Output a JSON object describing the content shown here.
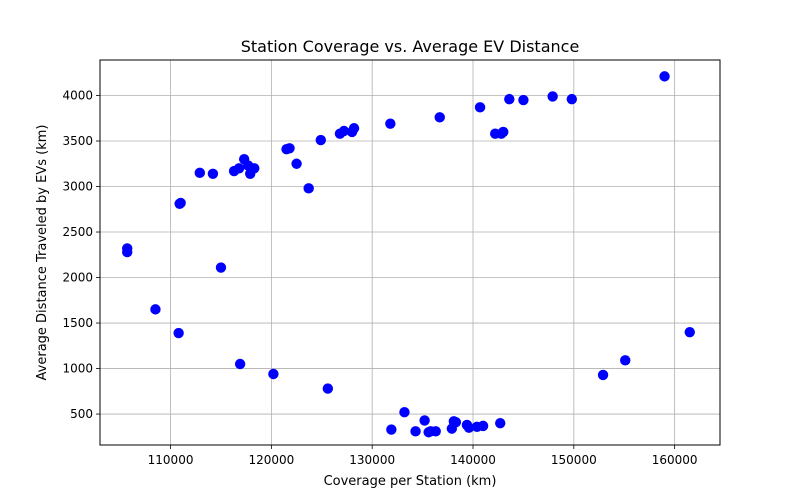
{
  "chart_data": {
    "type": "scatter",
    "title": "Station Coverage vs. Average EV Distance",
    "xlabel": "Coverage per Station (km)",
    "ylabel": "Average Distance Traveled by EVs (km)",
    "xlim": [
      103000,
      164500
    ],
    "ylim": [
      160,
      4390
    ],
    "x_ticks": [
      110000,
      120000,
      130000,
      140000,
      150000,
      160000
    ],
    "x_tick_labels": [
      "110000",
      "120000",
      "130000",
      "140000",
      "150000",
      "160000"
    ],
    "y_ticks": [
      500,
      1000,
      1500,
      2000,
      2500,
      3000,
      3500,
      4000
    ],
    "y_tick_labels": [
      "500",
      "1000",
      "1500",
      "2000",
      "2500",
      "3000",
      "3500",
      "4000"
    ],
    "grid": true,
    "marker_color": "#0000ff",
    "points": [
      {
        "x": 105700,
        "y": 2320
      },
      {
        "x": 105700,
        "y": 2280
      },
      {
        "x": 108500,
        "y": 1650
      },
      {
        "x": 110800,
        "y": 1390
      },
      {
        "x": 110900,
        "y": 2810
      },
      {
        "x": 111000,
        "y": 2820
      },
      {
        "x": 112900,
        "y": 3150
      },
      {
        "x": 114200,
        "y": 3140
      },
      {
        "x": 115000,
        "y": 2110
      },
      {
        "x": 116300,
        "y": 3170
      },
      {
        "x": 116800,
        "y": 3200
      },
      {
        "x": 116900,
        "y": 1050
      },
      {
        "x": 117300,
        "y": 3300
      },
      {
        "x": 117700,
        "y": 3230
      },
      {
        "x": 117900,
        "y": 3140
      },
      {
        "x": 118300,
        "y": 3200
      },
      {
        "x": 120200,
        "y": 940
      },
      {
        "x": 121500,
        "y": 3410
      },
      {
        "x": 121800,
        "y": 3420
      },
      {
        "x": 122500,
        "y": 3250
      },
      {
        "x": 123700,
        "y": 2980
      },
      {
        "x": 124900,
        "y": 3510
      },
      {
        "x": 125600,
        "y": 780
      },
      {
        "x": 126800,
        "y": 3580
      },
      {
        "x": 127200,
        "y": 3610
      },
      {
        "x": 128000,
        "y": 3600
      },
      {
        "x": 128200,
        "y": 3640
      },
      {
        "x": 131800,
        "y": 3690
      },
      {
        "x": 131900,
        "y": 330
      },
      {
        "x": 133200,
        "y": 520
      },
      {
        "x": 134300,
        "y": 310
      },
      {
        "x": 135200,
        "y": 430
      },
      {
        "x": 135600,
        "y": 300
      },
      {
        "x": 135800,
        "y": 310
      },
      {
        "x": 136300,
        "y": 310
      },
      {
        "x": 136700,
        "y": 3760
      },
      {
        "x": 137900,
        "y": 340
      },
      {
        "x": 138100,
        "y": 420
      },
      {
        "x": 138300,
        "y": 410
      },
      {
        "x": 139400,
        "y": 380
      },
      {
        "x": 139600,
        "y": 350
      },
      {
        "x": 140400,
        "y": 360
      },
      {
        "x": 140700,
        "y": 3870
      },
      {
        "x": 141000,
        "y": 370
      },
      {
        "x": 142200,
        "y": 3580
      },
      {
        "x": 142700,
        "y": 400
      },
      {
        "x": 142800,
        "y": 3580
      },
      {
        "x": 143000,
        "y": 3600
      },
      {
        "x": 143600,
        "y": 3960
      },
      {
        "x": 145000,
        "y": 3950
      },
      {
        "x": 147900,
        "y": 3990
      },
      {
        "x": 149800,
        "y": 3960
      },
      {
        "x": 152900,
        "y": 930
      },
      {
        "x": 155100,
        "y": 1090
      },
      {
        "x": 159000,
        "y": 4210
      },
      {
        "x": 161500,
        "y": 1400
      }
    ]
  }
}
